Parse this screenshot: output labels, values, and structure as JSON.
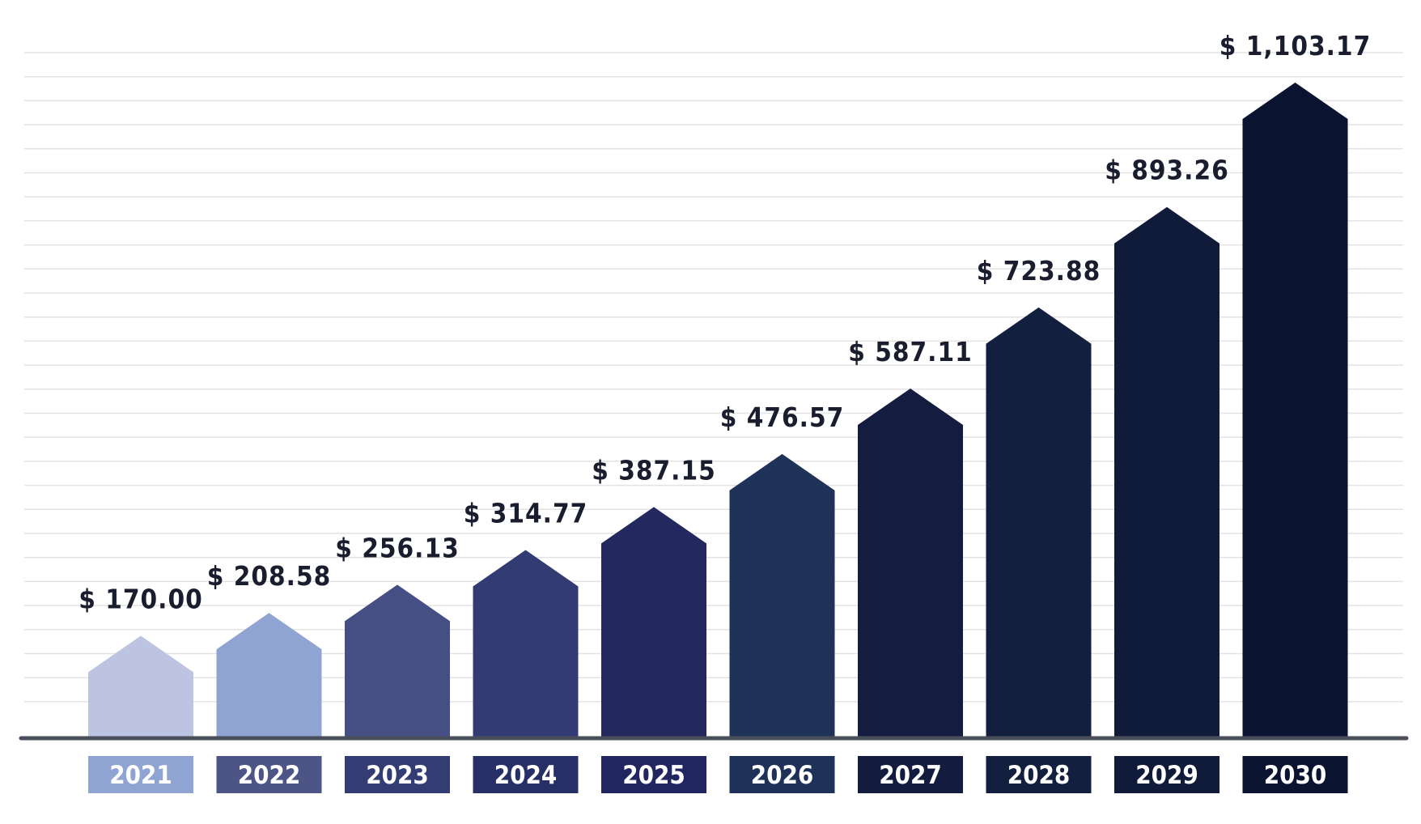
{
  "chart_data": {
    "type": "bar",
    "title": "",
    "xlabel": "",
    "ylabel": "",
    "categories": [
      "2021",
      "2022",
      "2023",
      "2024",
      "2025",
      "2026",
      "2027",
      "2028",
      "2029",
      "2030"
    ],
    "values": [
      170.0,
      208.58,
      256.13,
      314.77,
      387.15,
      476.57,
      587.11,
      723.88,
      893.26,
      1103.17
    ],
    "value_labels": [
      "$ 170.00",
      "$ 208.58",
      "$ 256.13",
      "$ 314.77",
      "$ 387.15",
      "$ 476.57",
      "$ 587.11",
      "$ 723.88",
      "$ 893.26",
      "$ 1,103.17"
    ],
    "ylim": [
      0,
      1200
    ],
    "grid": true,
    "legend": "none",
    "bar_shape": "arrow",
    "bar_colors": [
      "#bcc4e2",
      "#8fa4d2",
      "#454f84",
      "#323c72",
      "#23285e",
      "#1f3258",
      "#141d40",
      "#131f3f",
      "#101b3a",
      "#0a1330"
    ],
    "category_label_colors": [
      "#8fa4d2",
      "#4c5585",
      "#333d73",
      "#273066",
      "#212660",
      "#1e3158",
      "#131c3f",
      "#131f3f",
      "#101b3a",
      "#0a1330"
    ]
  }
}
